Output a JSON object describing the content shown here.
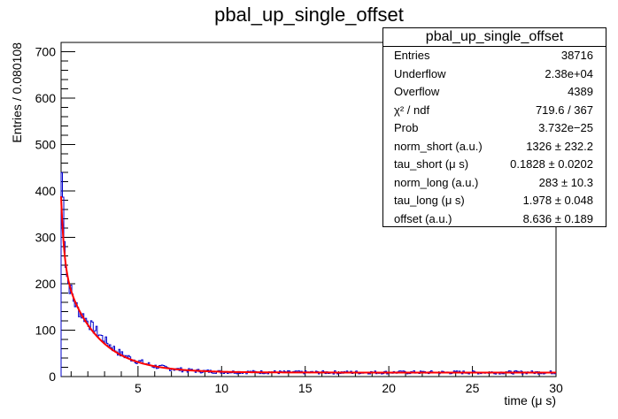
{
  "chart_data": {
    "type": "histogram",
    "title": "pbal_up_single_offset",
    "xlabel": "time (μ s)",
    "ylabel": "Entries / 0.080108",
    "xlim": [
      0.4,
      30
    ],
    "ylim": [
      0,
      720
    ],
    "x_ticks": [
      5,
      10,
      15,
      20,
      25,
      30
    ],
    "y_ticks": [
      0,
      100,
      200,
      300,
      400,
      500,
      600,
      700
    ],
    "histogram_color": "#0000cc",
    "fit_color": "#ff0000",
    "histogram": {
      "bin_width": 0.080108,
      "bins": [
        {
          "x": 0.45,
          "y": 440
        },
        {
          "x": 0.55,
          "y": 360
        },
        {
          "x": 0.65,
          "y": 255
        },
        {
          "x": 0.8,
          "y": 205
        },
        {
          "x": 1.0,
          "y": 185
        },
        {
          "x": 1.2,
          "y": 160
        },
        {
          "x": 1.4,
          "y": 145
        },
        {
          "x": 1.6,
          "y": 135
        },
        {
          "x": 1.8,
          "y": 128
        },
        {
          "x": 2.0,
          "y": 118
        },
        {
          "x": 2.3,
          "y": 105
        },
        {
          "x": 2.6,
          "y": 95
        },
        {
          "x": 3.0,
          "y": 78
        },
        {
          "x": 3.5,
          "y": 62
        },
        {
          "x": 4.0,
          "y": 48
        },
        {
          "x": 5.0,
          "y": 33
        },
        {
          "x": 6.0,
          "y": 22
        },
        {
          "x": 7.0,
          "y": 17
        },
        {
          "x": 8.0,
          "y": 13
        },
        {
          "x": 10.0,
          "y": 10
        },
        {
          "x": 15.0,
          "y": 9
        },
        {
          "x": 20.0,
          "y": 9
        },
        {
          "x": 25.0,
          "y": 9
        },
        {
          "x": 29.9,
          "y": 9
        }
      ]
    },
    "fit": {
      "function": "norm_short*exp(-t/tau_short) + norm_long*exp(-t/tau_long) + offset",
      "norm_short": 1326,
      "tau_short": 0.1828,
      "norm_long": 283,
      "tau_long": 1.978,
      "offset": 8.636
    },
    "stats": {
      "title": "pbal_up_single_offset",
      "rows": [
        {
          "label": "Entries",
          "value": "38716"
        },
        {
          "label": "Underflow",
          "value": "2.38e+04"
        },
        {
          "label": "Overflow",
          "value": "4389"
        },
        {
          "label": "χ² / ndf",
          "value": "719.6 / 367"
        },
        {
          "label": "Prob",
          "value": "3.732e−25"
        },
        {
          "label": "norm_short (a.u.)",
          "value": "1326 ± 232.2"
        },
        {
          "label": "tau_short (μ s)",
          "value": "0.1828 ± 0.0202"
        },
        {
          "label": "norm_long (a.u.)",
          "value": "283 ± 10.3"
        },
        {
          "label": "tau_long (μ s)",
          "value": "1.978 ± 0.048"
        },
        {
          "label": "offset (a.u.)",
          "value": "8.636 ± 0.189"
        }
      ]
    }
  }
}
